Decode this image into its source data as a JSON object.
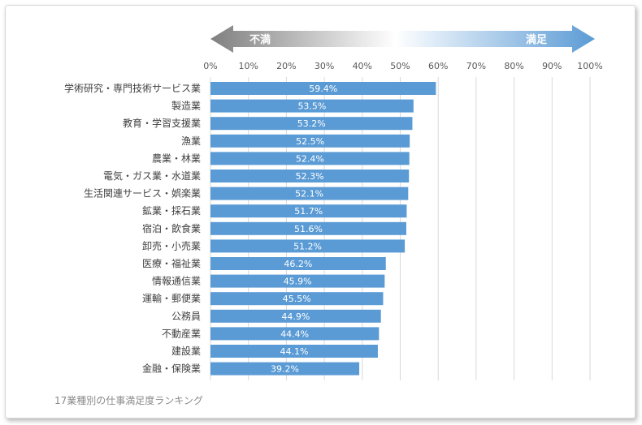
{
  "chart_data": {
    "type": "bar",
    "orientation": "horizontal",
    "categories": [
      "学術研究・専門技術サービス業",
      "製造業",
      "教育・学習支援業",
      "漁業",
      "農業・林業",
      "電気・ガス業・水道業",
      "生活関連サービス・娯楽業",
      "鉱業・採石業",
      "宿泊・飲食業",
      "卸売・小売業",
      "医療・福祉業",
      "情報通信業",
      "運輸・郵便業",
      "公務員",
      "不動産業",
      "建設業",
      "金融・保険業"
    ],
    "values": [
      59.4,
      53.5,
      53.2,
      52.5,
      52.4,
      52.3,
      52.1,
      51.7,
      51.6,
      51.2,
      46.2,
      45.9,
      45.5,
      44.9,
      44.4,
      44.1,
      39.2
    ],
    "value_labels": [
      "59.4%",
      "53.5%",
      "53.2%",
      "52.5%",
      "52.4%",
      "52.3%",
      "52.1%",
      "51.7%",
      "51.6%",
      "51.2%",
      "46.2%",
      "45.9%",
      "45.5%",
      "44.9%",
      "44.4%",
      "44.1%",
      "39.2%"
    ],
    "x_ticks": [
      "0%",
      "10%",
      "20%",
      "30%",
      "40%",
      "50%",
      "60%",
      "70%",
      "80%",
      "90%",
      "100%"
    ],
    "xlim": [
      0,
      100
    ],
    "grid": true,
    "arrow": {
      "left_label": "不満",
      "right_label": "満足"
    },
    "caption": "17業種別の仕事満足度ランキング",
    "colors": {
      "bar": "#5b9bd5",
      "arrow_left": "#7f7f7f",
      "arrow_right": "#5b9bd5",
      "grid": "#d9d9d9"
    }
  }
}
